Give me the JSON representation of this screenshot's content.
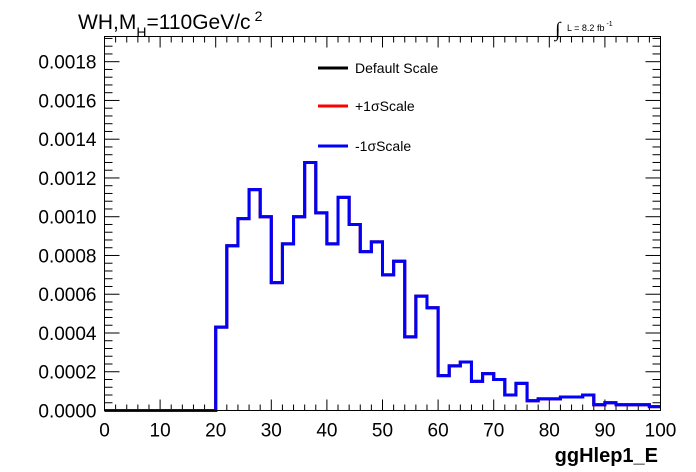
{
  "chart_data": {
    "type": "line",
    "style": "step-histogram",
    "title": {
      "part1": "WH,M",
      "subscript": "H",
      "part2": "=110GeV/c",
      "superscript": "2"
    },
    "lumi": {
      "integral": "∫",
      "text": "L = 8.2 fb",
      "exponent": "-1"
    },
    "xlabel": "ggHlep1_E",
    "ylabel": "",
    "xlim": [
      0,
      100
    ],
    "ylim": [
      0,
      0.00193
    ],
    "x_ticks": [
      "0",
      "10",
      "20",
      "30",
      "40",
      "50",
      "60",
      "70",
      "80",
      "90",
      "100"
    ],
    "y_ticks": [
      "0.0000",
      "0.0002",
      "0.0004",
      "0.0006",
      "0.0008",
      "0.0010",
      "0.0012",
      "0.0014",
      "0.0016",
      "0.0018"
    ],
    "bin_width": 2,
    "bin_edges_start": 0,
    "series": [
      {
        "name": "Default Scale",
        "color": "#000000",
        "values": [
          0,
          0,
          0,
          0,
          0,
          0,
          0,
          0,
          0,
          0,
          0.00043,
          0.00085,
          0.00099,
          0.00114,
          0.001,
          0.00066,
          0.00086,
          0.001,
          0.00128,
          0.00102,
          0.00086,
          0.0011,
          0.00096,
          0.00082,
          0.00087,
          0.0007,
          0.00077,
          0.00038,
          0.00059,
          0.00053,
          0.00018,
          0.00023,
          0.00025,
          0.00015,
          0.00019,
          0.00016,
          8e-05,
          0.00014,
          5e-05,
          6e-05,
          6e-05,
          7e-05,
          7e-05,
          8e-05,
          3e-05,
          4e-05,
          3e-05,
          3e-05,
          3e-05,
          2e-05
        ]
      },
      {
        "name": "+1σScale",
        "color": "#ff0000",
        "values": [
          0,
          0,
          0,
          0,
          0,
          0,
          0,
          0,
          0,
          0,
          0.00043,
          0.00085,
          0.00099,
          0.00114,
          0.001,
          0.00066,
          0.00086,
          0.001,
          0.00128,
          0.00102,
          0.00086,
          0.0011,
          0.00096,
          0.00082,
          0.00087,
          0.0007,
          0.00077,
          0.00038,
          0.00059,
          0.00053,
          0.00018,
          0.00023,
          0.00025,
          0.00015,
          0.00019,
          0.00016,
          8e-05,
          0.00014,
          5e-05,
          6e-05,
          6e-05,
          7e-05,
          7e-05,
          8e-05,
          3e-05,
          4e-05,
          3e-05,
          3e-05,
          3e-05,
          2e-05
        ]
      },
      {
        "name": "-1σScale",
        "color": "#0000ff",
        "values": [
          0,
          0,
          0,
          0,
          0,
          0,
          0,
          0,
          0,
          0,
          0.00043,
          0.00085,
          0.00099,
          0.00114,
          0.001,
          0.00066,
          0.00086,
          0.001,
          0.00128,
          0.00102,
          0.00086,
          0.0011,
          0.00096,
          0.00082,
          0.00087,
          0.0007,
          0.00077,
          0.00038,
          0.00059,
          0.00053,
          0.00018,
          0.00023,
          0.00025,
          0.00015,
          0.00019,
          0.00016,
          8e-05,
          0.00014,
          5e-05,
          6e-05,
          6e-05,
          7e-05,
          7e-05,
          8e-05,
          3e-05,
          4e-05,
          3e-05,
          3e-05,
          3e-05,
          2e-05
        ]
      }
    ],
    "legend_position": "top-center",
    "grid": false
  }
}
